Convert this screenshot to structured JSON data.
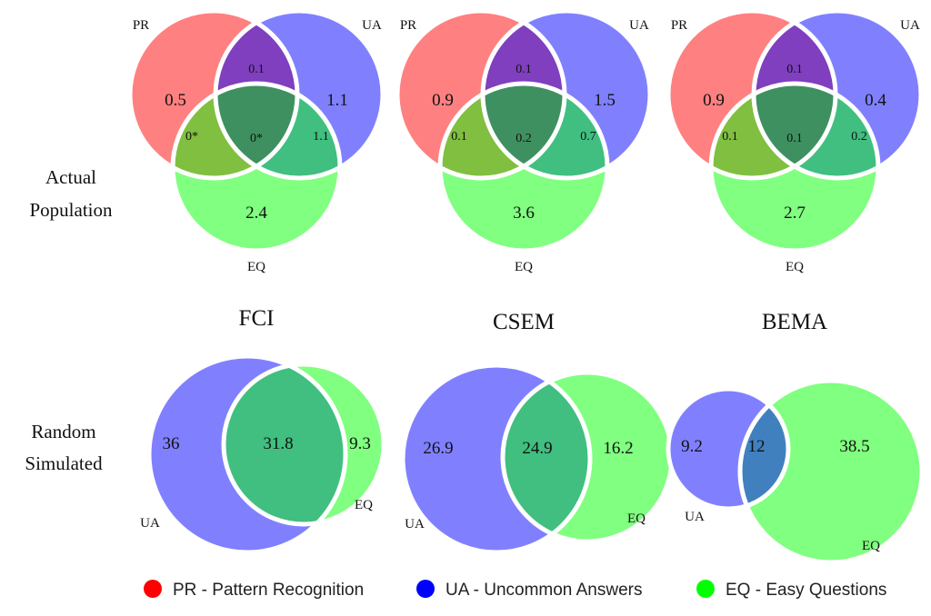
{
  "row_labels": {
    "actual": [
      "Actual",
      "Population"
    ],
    "random": [
      "Random",
      "Simulated"
    ]
  },
  "columns": [
    {
      "title": "FCI",
      "actual": {
        "set_labels": {
          "pr": "PR",
          "ua": "UA",
          "eq": "EQ"
        },
        "regions": {
          "pr_only": "0.5",
          "ua_only": "1.1",
          "eq_only": "2.4",
          "pr_ua": "0.1",
          "pr_eq": "0*",
          "ua_eq": "1.1",
          "all": "0*"
        }
      },
      "random": {
        "set_labels": {
          "ua": "UA",
          "eq": "EQ"
        },
        "regions": {
          "ua_only": "36",
          "both": "31.8",
          "eq_only": "9.3"
        }
      }
    },
    {
      "title": "CSEM",
      "actual": {
        "set_labels": {
          "pr": "PR",
          "ua": "UA",
          "eq": "EQ"
        },
        "regions": {
          "pr_only": "0.9",
          "ua_only": "1.5",
          "eq_only": "3.6",
          "pr_ua": "0.1",
          "pr_eq": "0.1",
          "ua_eq": "0.7",
          "all": "0.2"
        }
      },
      "random": {
        "set_labels": {
          "ua": "UA",
          "eq": "EQ"
        },
        "regions": {
          "ua_only": "26.9",
          "both": "24.9",
          "eq_only": "16.2"
        }
      }
    },
    {
      "title": "BEMA",
      "actual": {
        "set_labels": {
          "pr": "PR",
          "ua": "UA",
          "eq": "EQ"
        },
        "regions": {
          "pr_only": "0.9",
          "ua_only": "0.4",
          "eq_only": "2.7",
          "pr_ua": "0.1",
          "pr_eq": "0.1",
          "ua_eq": "0.2",
          "all": "0.1"
        }
      },
      "random": {
        "set_labels": {
          "ua": "UA",
          "eq": "EQ"
        },
        "regions": {
          "ua_only": "9.2",
          "both": "12",
          "eq_only": "38.5"
        }
      }
    }
  ],
  "legend": [
    {
      "color": "#ff0000",
      "label": "PR - Pattern Recognition"
    },
    {
      "color": "#0000ff",
      "label": "UA - Uncommon Answers"
    },
    {
      "color": "#00ff00",
      "label": "EQ - Easy Questions"
    }
  ],
  "colors": {
    "pr": "#ff8080",
    "ua": "#8080ff",
    "eq": "#80ff80",
    "pr_ua": "#7f3fbf",
    "pr_eq": "#80bf40",
    "ua_eq": "#40bf80",
    "all": "#3f9060",
    "ua_eq_random": "#40bf80",
    "ua_eq_random_bema": "#4080bf",
    "border": "#ffffff"
  }
}
